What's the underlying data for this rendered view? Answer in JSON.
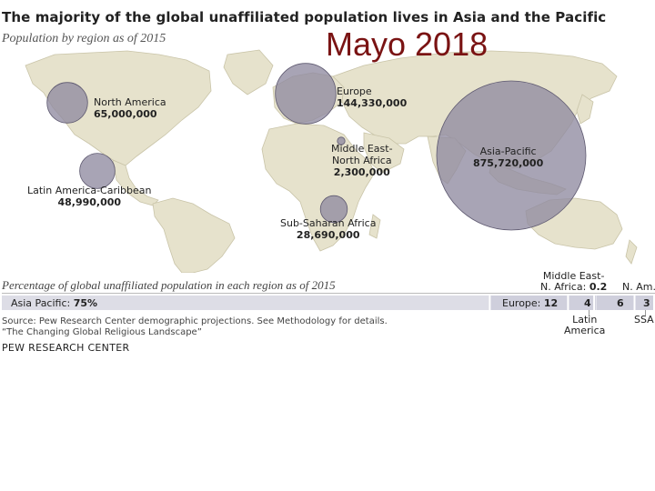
{
  "overlay_text": "Mayo 2018",
  "source": "Source: Pew Research Center demographic projections. See Methodology for details.",
  "source_line2": "“The Changing Global Religious Landscape”",
  "organization": "PEW RESEARCH CENTER",
  "colors": {
    "land": "#e6e2cc",
    "land_stroke": "#c9c4a8",
    "bubble": "#8f8aa0",
    "bar_bg": "#dddde6",
    "bar_light": "#cfcfdc"
  },
  "chart_data": [
    {
      "type": "bubble-map",
      "title": "The majority of the global unaffiliated population lives in Asia and the Pacific",
      "subtitle": "Population by region as of 2015",
      "regions": [
        {
          "name": "North America",
          "value_label": "65,000,000",
          "value": 65000000
        },
        {
          "name": "Europe",
          "value_label": "144,330,000",
          "value": 144330000
        },
        {
          "name": "Middle East-",
          "name2": "North Africa",
          "value_label": "2,300,000",
          "value": 2300000
        },
        {
          "name": "Asia-Pacific",
          "value_label": "875,720,000",
          "value": 875720000
        },
        {
          "name": "Latin America-Caribbean",
          "value_label": "48,990,000",
          "value": 48990000
        },
        {
          "name": "Sub-Saharan Africa",
          "value_label": "28,690,000",
          "value": 28690000
        }
      ]
    },
    {
      "type": "bar",
      "title": "Percentage of global unaffiliated population in each region as of 2015",
      "segments": [
        {
          "label": "Asia Pacific:",
          "value": 75,
          "display": "75%"
        },
        {
          "label": "Europe:",
          "value": 12,
          "display": "12"
        },
        {
          "label": "Latin America",
          "value": 4,
          "display": "4"
        },
        {
          "label": "Middle East-N. Africa:",
          "value": 0.2,
          "display": "0.2"
        },
        {
          "label": "N. Am.",
          "value": 6,
          "display": "6"
        },
        {
          "label": "SSA",
          "value": 3,
          "display": "3"
        }
      ],
      "callouts": {
        "mena_line1": "Middle East-",
        "mena_line2": "N. Africa:",
        "latam_line1": "Latin",
        "latam_line2": "America"
      }
    }
  ]
}
